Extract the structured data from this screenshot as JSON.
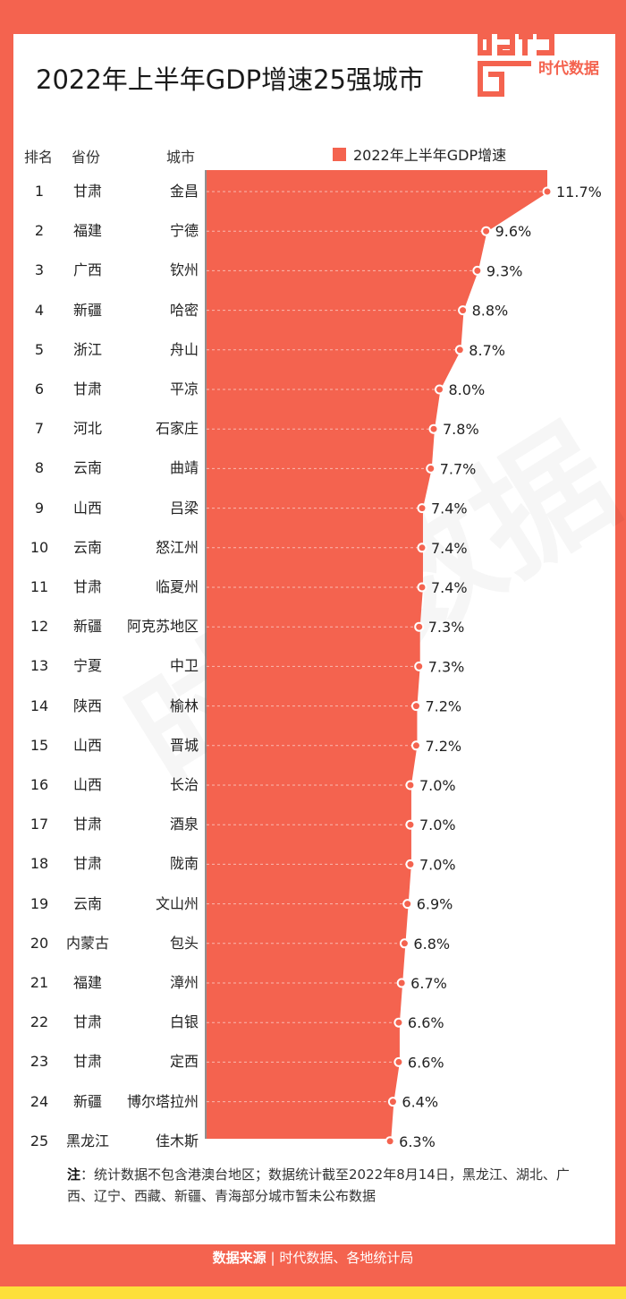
{
  "title": "2022年上半年GDP增速25强城市",
  "brand": {
    "logo_word": "data",
    "name": "时代数据"
  },
  "headers": {
    "rank": "排名",
    "province": "省份",
    "city": "城市"
  },
  "legend_label": "2022年上半年GDP增速",
  "colors": {
    "accent": "#f4634f",
    "bottom_stripe": "#fde03a"
  },
  "chart_data": {
    "type": "area",
    "orientation": "horizontal",
    "series": [
      {
        "name": "2022年上半年GDP增速",
        "values": [
          11.7,
          9.6,
          9.3,
          8.8,
          8.7,
          8.0,
          7.8,
          7.7,
          7.4,
          7.4,
          7.4,
          7.3,
          7.3,
          7.2,
          7.2,
          7.0,
          7.0,
          7.0,
          6.9,
          6.8,
          6.7,
          6.6,
          6.6,
          6.4,
          6.3
        ]
      }
    ],
    "value_labels": [
      "11.7%",
      "9.6%",
      "9.3%",
      "8.8%",
      "8.7%",
      "8.0%",
      "7.8%",
      "7.7%",
      "7.4%",
      "7.4%",
      "7.4%",
      "7.3%",
      "7.3%",
      "7.2%",
      "7.2%",
      "7.0%",
      "7.0%",
      "7.0%",
      "6.9%",
      "6.8%",
      "6.7%",
      "6.6%",
      "6.6%",
      "6.4%",
      "6.3%"
    ],
    "xlim": [
      0,
      11.7
    ],
    "grid": true,
    "legend_position": "top"
  },
  "rows": [
    {
      "rank": "1",
      "province": "甘肃",
      "city": "金昌"
    },
    {
      "rank": "2",
      "province": "福建",
      "city": "宁德"
    },
    {
      "rank": "3",
      "province": "广西",
      "city": "钦州"
    },
    {
      "rank": "4",
      "province": "新疆",
      "city": "哈密"
    },
    {
      "rank": "5",
      "province": "浙江",
      "city": "舟山"
    },
    {
      "rank": "6",
      "province": "甘肃",
      "city": "平凉"
    },
    {
      "rank": "7",
      "province": "河北",
      "city": "石家庄"
    },
    {
      "rank": "8",
      "province": "云南",
      "city": "曲靖"
    },
    {
      "rank": "9",
      "province": "山西",
      "city": "吕梁"
    },
    {
      "rank": "10",
      "province": "云南",
      "city": "怒江州"
    },
    {
      "rank": "11",
      "province": "甘肃",
      "city": "临夏州"
    },
    {
      "rank": "12",
      "province": "新疆",
      "city": "阿克苏地区"
    },
    {
      "rank": "13",
      "province": "宁夏",
      "city": "中卫"
    },
    {
      "rank": "14",
      "province": "陕西",
      "city": "榆林"
    },
    {
      "rank": "15",
      "province": "山西",
      "city": "晋城"
    },
    {
      "rank": "16",
      "province": "山西",
      "city": "长治"
    },
    {
      "rank": "17",
      "province": "甘肃",
      "city": "酒泉"
    },
    {
      "rank": "18",
      "province": "甘肃",
      "city": "陇南"
    },
    {
      "rank": "19",
      "province": "云南",
      "city": "文山州"
    },
    {
      "rank": "20",
      "province": "内蒙古",
      "city": "包头"
    },
    {
      "rank": "21",
      "province": "福建",
      "city": "漳州"
    },
    {
      "rank": "22",
      "province": "甘肃",
      "city": "白银"
    },
    {
      "rank": "23",
      "province": "甘肃",
      "city": "定西"
    },
    {
      "rank": "24",
      "province": "新疆",
      "city": "博尔塔拉州"
    },
    {
      "rank": "25",
      "province": "黑龙江",
      "city": "佳木斯"
    }
  ],
  "note": {
    "label": "注",
    "text": "：统计数据不包含港澳台地区；数据统计截至2022年8月14日，黑龙江、湖北、广西、辽宁、西藏、新疆、青海部分城市暂未公布数据"
  },
  "source": {
    "label": "数据来源",
    "separator": "|",
    "text": "时代数据、各地统计局"
  }
}
